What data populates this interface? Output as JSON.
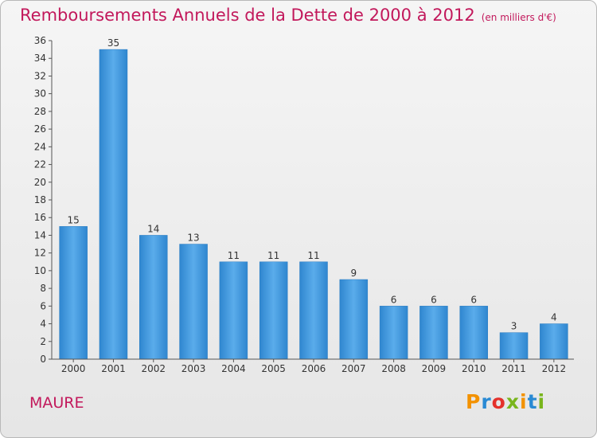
{
  "header": {
    "title": "Remboursements Annuels de la Dette de 2000 à 2012",
    "unit": "(en milliers d'€)"
  },
  "footer": {
    "commune": "MAURE",
    "logo_letters": [
      "P",
      "r",
      "o",
      "x",
      "i",
      "t",
      "i"
    ],
    "logo_colors": [
      "#f39200",
      "#2a8ad4",
      "#e4312b",
      "#79b51c",
      "#f39200",
      "#2a8ad4",
      "#79b51c"
    ]
  },
  "chart_data": {
    "type": "bar",
    "title": "Remboursements Annuels de la Dette de 2000 à 2012",
    "categories": [
      "2000",
      "2001",
      "2002",
      "2003",
      "2004",
      "2005",
      "2006",
      "2007",
      "2008",
      "2009",
      "2010",
      "2011",
      "2012"
    ],
    "values": [
      15,
      35,
      14,
      13,
      11,
      11,
      11,
      9,
      6,
      6,
      6,
      3,
      4
    ],
    "ylim": [
      0,
      36
    ],
    "yticks": [
      0,
      2,
      4,
      6,
      8,
      10,
      12,
      14,
      16,
      18,
      20,
      22,
      24,
      26,
      28,
      30,
      32,
      34,
      36
    ],
    "grid": false,
    "bar_color": "#3d95d9",
    "title_color": "#c2185b"
  }
}
